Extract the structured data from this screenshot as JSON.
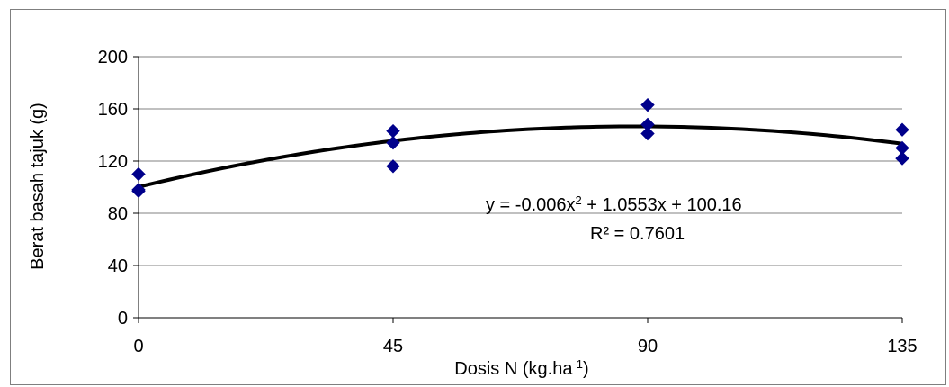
{
  "chart_data": {
    "type": "scatter",
    "xlabel": "Dosis N (kg.ha",
    "xlabel_sup": "-1",
    "xlabel_end": ")",
    "ylabel": "Berat basah tajuk (g)",
    "x_ticks": [
      "0",
      "45",
      "90",
      "135"
    ],
    "y_ticks": [
      "0",
      "40",
      "80",
      "120",
      "160",
      "200"
    ],
    "xlim": [
      0,
      135
    ],
    "ylim": [
      0,
      200
    ],
    "grid": "horizontal",
    "points": [
      {
        "x": 0,
        "y": 110
      },
      {
        "x": 0,
        "y": 98
      },
      {
        "x": 0,
        "y": 97
      },
      {
        "x": 45,
        "y": 143
      },
      {
        "x": 45,
        "y": 134
      },
      {
        "x": 45,
        "y": 116
      },
      {
        "x": 90,
        "y": 163
      },
      {
        "x": 90,
        "y": 148
      },
      {
        "x": 90,
        "y": 141
      },
      {
        "x": 135,
        "y": 144
      },
      {
        "x": 135,
        "y": 130
      },
      {
        "x": 135,
        "y": 122
      }
    ],
    "trendline": {
      "type": "polynomial",
      "a": -0.006,
      "b": 1.0553,
      "c": 100.16
    },
    "equation_prefix": "y = -0.006x",
    "equation_sup": "2",
    "equation_suffix": " + 1.0553x + 100.16",
    "r_squared": "R² = 0.7601",
    "marker_color": "#00008b",
    "line_color": "#000000",
    "grid_color": "#808080"
  }
}
